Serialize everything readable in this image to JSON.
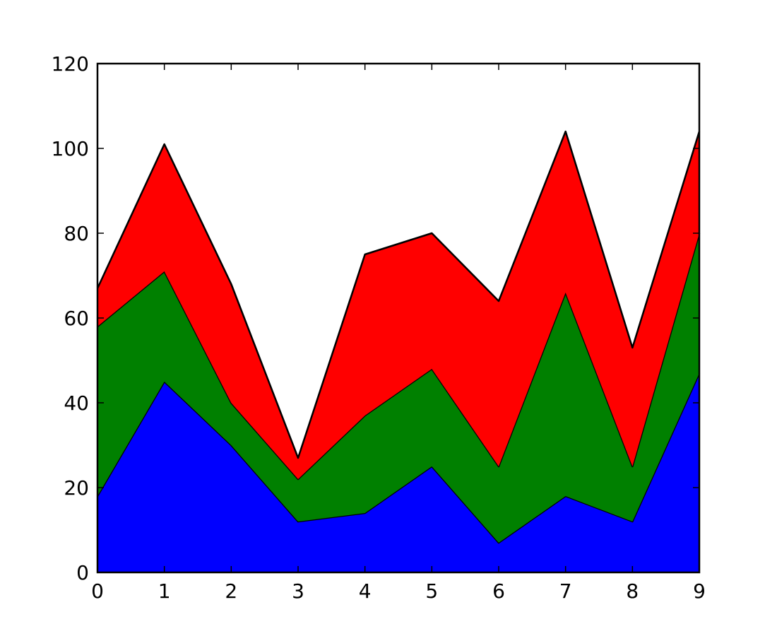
{
  "chart_data": {
    "type": "stackplot",
    "x": [
      0,
      1,
      2,
      3,
      4,
      5,
      6,
      7,
      8,
      9
    ],
    "series": [
      {
        "color": "#0000ff",
        "values": [
          18,
          45,
          30,
          12,
          14,
          25,
          7,
          18,
          12,
          47
        ]
      },
      {
        "color": "#008000",
        "values": [
          40,
          26,
          10,
          10,
          23,
          23,
          18,
          48,
          13,
          33
        ]
      },
      {
        "color": "#ff0000",
        "values": [
          9,
          30,
          28,
          5,
          38,
          32,
          39,
          38,
          28,
          24
        ]
      }
    ],
    "xlim": [
      0,
      9
    ],
    "ylim": [
      0,
      120
    ],
    "xticks": [
      0,
      1,
      2,
      3,
      4,
      5,
      6,
      7,
      8,
      9
    ],
    "yticks": [
      0,
      20,
      40,
      60,
      80,
      100,
      120
    ],
    "edge_color": "#000000"
  }
}
